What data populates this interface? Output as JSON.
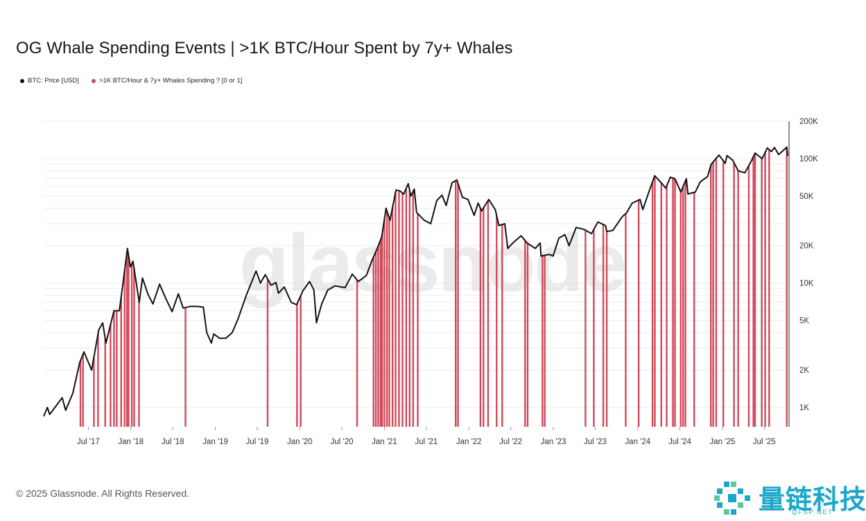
{
  "title": "OG Whale Spending Events | >1K BTC/Hour Spent by 7y+ Whales",
  "legend": {
    "price_label": "BTC: Price [USD]",
    "price_color": "#111111",
    "events_label": ">1K BTC/Hour & 7y+ Whales Spending ? [0 or 1]",
    "events_color": "#d0495a"
  },
  "watermark": "glassnode",
  "copyright": "© 2025 Glassnode. All Rights Reserved.",
  "brand": {
    "name": "量链科技",
    "sub": "QFSP.NET",
    "icon": "pixel-logo-icon",
    "color": "#1aa7c8"
  },
  "chart_data": {
    "type": "line",
    "title": "OG Whale Spending Events | >1K BTC/Hour Spent by 7y+ Whales",
    "y_scale": "log",
    "ylim": [
      700,
      200000
    ],
    "y_axis_position": "right",
    "y_ticks": [
      {
        "value": 200000,
        "label": "200K"
      },
      {
        "value": 100000,
        "label": "100K"
      },
      {
        "value": 50000,
        "label": "50K"
      },
      {
        "value": 20000,
        "label": "20K"
      },
      {
        "value": 10000,
        "label": "10K"
      },
      {
        "value": 5000,
        "label": "5K"
      },
      {
        "value": 2000,
        "label": "2K"
      },
      {
        "value": 1000,
        "label": "1K"
      }
    ],
    "xlim": [
      "2016-12-20",
      "2025-10-10"
    ],
    "x_ticks": [
      {
        "date": "2017-07-01",
        "label": "Jul '17"
      },
      {
        "date": "2018-01-01",
        "label": "Jan '18"
      },
      {
        "date": "2018-07-01",
        "label": "Jul '18"
      },
      {
        "date": "2019-01-01",
        "label": "Jan '19"
      },
      {
        "date": "2019-07-01",
        "label": "Jul '19"
      },
      {
        "date": "2020-01-01",
        "label": "Jan '20"
      },
      {
        "date": "2020-07-01",
        "label": "Jul '20"
      },
      {
        "date": "2021-01-01",
        "label": "Jan '21"
      },
      {
        "date": "2021-07-01",
        "label": "Jul '21"
      },
      {
        "date": "2022-01-01",
        "label": "Jan '22"
      },
      {
        "date": "2022-07-01",
        "label": "Jul '22"
      },
      {
        "date": "2023-01-01",
        "label": "Jan '23"
      },
      {
        "date": "2023-07-01",
        "label": "Jul '23"
      },
      {
        "date": "2024-01-01",
        "label": "Jan '24"
      },
      {
        "date": "2024-07-01",
        "label": "Jul '24"
      },
      {
        "date": "2025-01-01",
        "label": "Jan '25"
      },
      {
        "date": "2025-07-01",
        "label": "Jul '25"
      }
    ],
    "grid": true,
    "legend_position": "top-left",
    "series": [
      {
        "name": "BTC: Price [USD]",
        "color": "#111111",
        "points": [
          [
            "2016-12-20",
            850
          ],
          [
            "2017-01-05",
            1000
          ],
          [
            "2017-01-15",
            880
          ],
          [
            "2017-02-15",
            1050
          ],
          [
            "2017-03-10",
            1200
          ],
          [
            "2017-03-25",
            950
          ],
          [
            "2017-04-25",
            1300
          ],
          [
            "2017-05-25",
            2300
          ],
          [
            "2017-06-12",
            2800
          ],
          [
            "2017-07-15",
            2000
          ],
          [
            "2017-08-15",
            4200
          ],
          [
            "2017-09-01",
            4800
          ],
          [
            "2017-09-15",
            3300
          ],
          [
            "2017-10-20",
            6000
          ],
          [
            "2017-11-12",
            6000
          ],
          [
            "2017-11-28",
            10000
          ],
          [
            "2017-12-17",
            19000
          ],
          [
            "2017-12-30",
            13500
          ],
          [
            "2018-01-10",
            15000
          ],
          [
            "2018-02-06",
            7000
          ],
          [
            "2018-02-20",
            11000
          ],
          [
            "2018-03-15",
            8200
          ],
          [
            "2018-04-06",
            6800
          ],
          [
            "2018-05-05",
            9800
          ],
          [
            "2018-06-01",
            7500
          ],
          [
            "2018-06-28",
            5900
          ],
          [
            "2018-07-25",
            8200
          ],
          [
            "2018-08-15",
            6300
          ],
          [
            "2018-09-15",
            6500
          ],
          [
            "2018-10-15",
            6500
          ],
          [
            "2018-11-10",
            6400
          ],
          [
            "2018-11-25",
            4000
          ],
          [
            "2018-12-15",
            3300
          ],
          [
            "2018-12-25",
            3900
          ],
          [
            "2019-01-20",
            3600
          ],
          [
            "2019-02-15",
            3600
          ],
          [
            "2019-03-15",
            4000
          ],
          [
            "2019-04-10",
            5200
          ],
          [
            "2019-05-15",
            8000
          ],
          [
            "2019-06-26",
            12500
          ],
          [
            "2019-07-15",
            10000
          ],
          [
            "2019-08-05",
            11700
          ],
          [
            "2019-08-30",
            9600
          ],
          [
            "2019-09-20",
            10100
          ],
          [
            "2019-10-01",
            8300
          ],
          [
            "2019-10-26",
            9300
          ],
          [
            "2019-11-25",
            7000
          ],
          [
            "2019-12-18",
            6700
          ],
          [
            "2020-01-15",
            8700
          ],
          [
            "2020-02-12",
            10300
          ],
          [
            "2020-03-02",
            8800
          ],
          [
            "2020-03-13",
            4800
          ],
          [
            "2020-04-05",
            6800
          ],
          [
            "2020-05-01",
            8800
          ],
          [
            "2020-06-01",
            9500
          ],
          [
            "2020-07-15",
            9200
          ],
          [
            "2020-08-15",
            11800
          ],
          [
            "2020-09-10",
            10300
          ],
          [
            "2020-10-15",
            11500
          ],
          [
            "2020-11-10",
            15500
          ],
          [
            "2020-12-01",
            19000
          ],
          [
            "2020-12-20",
            23500
          ],
          [
            "2021-01-08",
            40000
          ],
          [
            "2021-01-25",
            32000
          ],
          [
            "2021-02-20",
            56000
          ],
          [
            "2021-03-10",
            55000
          ],
          [
            "2021-03-25",
            52000
          ],
          [
            "2021-04-14",
            63000
          ],
          [
            "2021-04-25",
            50000
          ],
          [
            "2021-05-10",
            57000
          ],
          [
            "2021-05-20",
            37000
          ],
          [
            "2021-06-22",
            32000
          ],
          [
            "2021-07-20",
            30000
          ],
          [
            "2021-08-15",
            46000
          ],
          [
            "2021-09-07",
            51000
          ],
          [
            "2021-09-25",
            42000
          ],
          [
            "2021-10-20",
            64000
          ],
          [
            "2021-11-10",
            67500
          ],
          [
            "2021-12-04",
            49000
          ],
          [
            "2021-12-28",
            47000
          ],
          [
            "2022-01-24",
            35000
          ],
          [
            "2022-02-10",
            44000
          ],
          [
            "2022-02-25",
            38000
          ],
          [
            "2022-03-28",
            47000
          ],
          [
            "2022-04-25",
            39000
          ],
          [
            "2022-05-11",
            29000
          ],
          [
            "2022-06-05",
            30000
          ],
          [
            "2022-06-18",
            19000
          ],
          [
            "2022-07-10",
            21000
          ],
          [
            "2022-08-15",
            24000
          ],
          [
            "2022-09-10",
            21000
          ],
          [
            "2022-10-15",
            19000
          ],
          [
            "2022-11-05",
            21000
          ],
          [
            "2022-11-09",
            16500
          ],
          [
            "2022-12-15",
            17000
          ],
          [
            "2022-12-31",
            16500
          ],
          [
            "2023-01-25",
            23000
          ],
          [
            "2023-02-20",
            24500
          ],
          [
            "2023-03-10",
            20000
          ],
          [
            "2023-04-10",
            28000
          ],
          [
            "2023-05-15",
            27000
          ],
          [
            "2023-06-15",
            25000
          ],
          [
            "2023-07-13",
            31000
          ],
          [
            "2023-08-15",
            29000
          ],
          [
            "2023-08-20",
            26000
          ],
          [
            "2023-09-15",
            26500
          ],
          [
            "2023-10-25",
            34000
          ],
          [
            "2023-11-15",
            37000
          ],
          [
            "2023-12-08",
            44000
          ],
          [
            "2024-01-11",
            47000
          ],
          [
            "2024-01-23",
            39000
          ],
          [
            "2024-02-15",
            52000
          ],
          [
            "2024-03-14",
            73000
          ],
          [
            "2024-04-15",
            63000
          ],
          [
            "2024-05-01",
            58000
          ],
          [
            "2024-05-21",
            71000
          ],
          [
            "2024-06-10",
            69000
          ],
          [
            "2024-07-05",
            54000
          ],
          [
            "2024-07-29",
            69000
          ],
          [
            "2024-08-05",
            52000
          ],
          [
            "2024-09-06",
            54000
          ],
          [
            "2024-09-27",
            65000
          ],
          [
            "2024-10-29",
            72000
          ],
          [
            "2024-11-13",
            90000
          ],
          [
            "2024-12-17",
            107000
          ],
          [
            "2025-01-13",
            92000
          ],
          [
            "2025-01-21",
            106000
          ],
          [
            "2025-02-15",
            97000
          ],
          [
            "2025-03-10",
            80000
          ],
          [
            "2025-04-08",
            77000
          ],
          [
            "2025-05-05",
            95000
          ],
          [
            "2025-05-22",
            111000
          ],
          [
            "2025-06-22",
            100000
          ],
          [
            "2025-07-14",
            122000
          ],
          [
            "2025-08-01",
            114000
          ],
          [
            "2025-08-14",
            123000
          ],
          [
            "2025-09-01",
            108000
          ],
          [
            "2025-09-20",
            116000
          ],
          [
            "2025-10-06",
            124000
          ],
          [
            "2025-10-10",
            105000
          ]
        ]
      },
      {
        "name": ">1K BTC/Hour & 7y+ Whales Spending ? [0 or 1]",
        "color": "#d0495a",
        "type": "event_bars",
        "dates": [
          "2017-05-28",
          "2017-06-08",
          "2017-07-25",
          "2017-08-12",
          "2017-09-12",
          "2017-10-05",
          "2017-10-20",
          "2017-11-01",
          "2017-11-20",
          "2017-12-05",
          "2017-12-15",
          "2017-12-22",
          "2018-01-05",
          "2018-01-15",
          "2018-02-05",
          "2018-08-25",
          "2019-08-15",
          "2019-12-20",
          "2020-01-05",
          "2020-09-05",
          "2020-11-15",
          "2020-11-25",
          "2020-12-05",
          "2020-12-15",
          "2020-12-22",
          "2021-01-01",
          "2021-01-12",
          "2021-01-22",
          "2021-02-05",
          "2021-02-18",
          "2021-03-05",
          "2021-03-20",
          "2021-04-05",
          "2021-04-20",
          "2021-05-05",
          "2021-05-25",
          "2021-11-05",
          "2021-11-15",
          "2022-02-20",
          "2022-03-05",
          "2022-03-25",
          "2022-05-01",
          "2022-05-25",
          "2022-09-01",
          "2022-09-12",
          "2022-11-15",
          "2022-11-25",
          "2023-05-20",
          "2023-06-25",
          "2023-08-05",
          "2023-08-20",
          "2023-11-10",
          "2024-01-05",
          "2024-03-05",
          "2024-03-15",
          "2024-04-12",
          "2024-05-05",
          "2024-06-01",
          "2024-06-10",
          "2024-07-05",
          "2024-07-15",
          "2024-07-25",
          "2024-09-01",
          "2024-11-12",
          "2024-11-22",
          "2024-12-05",
          "2025-01-05",
          "2025-02-20",
          "2025-03-10",
          "2025-04-25",
          "2025-05-15",
          "2025-05-22",
          "2025-06-20",
          "2025-07-05",
          "2025-07-22",
          "2025-10-06"
        ]
      }
    ]
  }
}
